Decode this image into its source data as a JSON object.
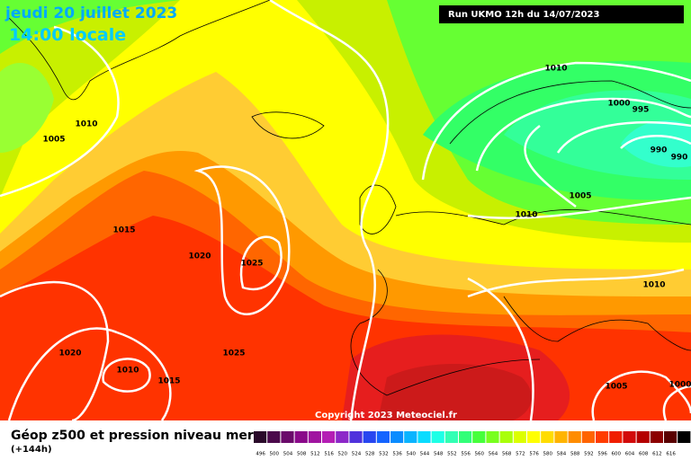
{
  "header": {
    "date": "jeudi 20 juillet 2023",
    "time": "14:00 locale",
    "run": "Run UKMO 12h du 14/07/2023"
  },
  "isobar_labels": [
    "1010",
    "1000",
    "995",
    "990",
    "990",
    "1005",
    "1010",
    "1010",
    "1010",
    "1005",
    "1015",
    "1020",
    "1025",
    "1020",
    "1025",
    "1010",
    "1015",
    "1005",
    "1000"
  ],
  "copyright": "Copyright 2023 Meteociel.fr",
  "footer": {
    "title": "Géop z500 et pression niveau mer",
    "lead": "(+144h)"
  },
  "scale_labels": [
    "496",
    "500",
    "504",
    "508",
    "512",
    "516",
    "520",
    "524",
    "528",
    "532",
    "536",
    "540",
    "544",
    "548",
    "552",
    "556",
    "560",
    "564",
    "568",
    "572",
    "576",
    "580",
    "584",
    "588",
    "592",
    "596",
    "600",
    "604",
    "608",
    "612",
    "616"
  ]
}
